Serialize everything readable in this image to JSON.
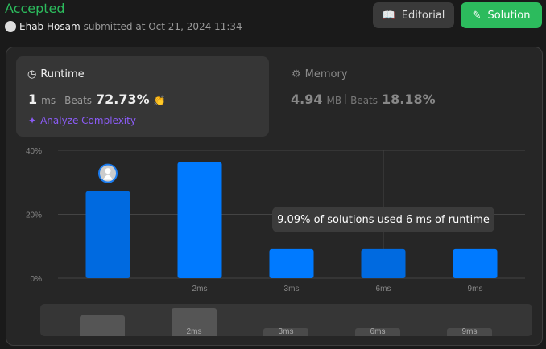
{
  "header": {
    "status": "Accepted",
    "user": "Ehab Hosam",
    "submitted_text": "submitted at Oct 21, 2024 11:34",
    "editorial_label": "Editorial",
    "solution_label": "Solution"
  },
  "colors": {
    "accepted": "#2cbb5d",
    "bar": "#007aff",
    "bar_selected": "#006ae0",
    "analyze": "#8b5cf6"
  },
  "runtime": {
    "label": "Runtime",
    "value": "1",
    "unit": "ms",
    "beats_label": "Beats",
    "beats": "72.73%",
    "analyze_label": "Analyze Complexity"
  },
  "memory": {
    "label": "Memory",
    "value": "4.94",
    "unit": "MB",
    "beats_label": "Beats",
    "beats": "18.18%"
  },
  "tooltip": "9.09% of solutions used 6 ms of runtime",
  "chart_data": {
    "type": "bar",
    "categories": [
      "",
      "2ms",
      "3ms",
      "6ms",
      "9ms"
    ],
    "values": [
      27.27,
      36.36,
      9.09,
      9.09,
      9.09
    ],
    "ylim": [
      0,
      40
    ],
    "yticks": [
      "0%",
      "20%",
      "40%"
    ],
    "grid": true,
    "user_bar_index": 0
  }
}
